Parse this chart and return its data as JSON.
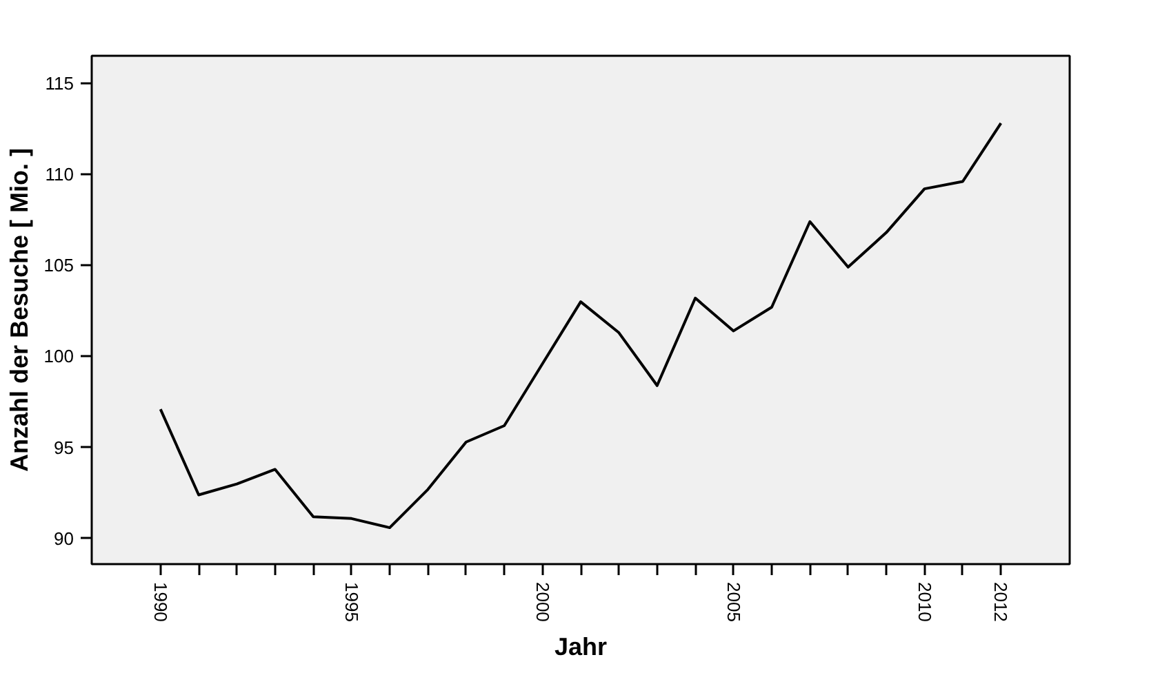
{
  "chart_data": {
    "type": "line",
    "xlabel": "Jahr",
    "ylabel": "Anzahl der Besuche [ Mio. ]",
    "x": [
      1990,
      1991,
      1992,
      1993,
      1994,
      1995,
      1996,
      1997,
      1998,
      1999,
      2000,
      2001,
      2002,
      2003,
      2004,
      2005,
      2006,
      2007,
      2008,
      2009,
      2010,
      2011,
      2012
    ],
    "series": [
      {
        "color": "#000000",
        "values": [
          97.1,
          92.4,
          93.0,
          93.8,
          91.2,
          91.1,
          90.6,
          92.7,
          95.3,
          96.2,
          99.6,
          103.0,
          101.3,
          98.4,
          103.2,
          101.4,
          102.7,
          107.4,
          104.9,
          106.8,
          109.2,
          109.6,
          112.8
        ]
      }
    ],
    "xlim": [
      1988.2,
      2013.8
    ],
    "ylim": [
      88.6,
      116.5
    ],
    "xticks": [
      1990,
      {
        "value": 1991,
        "label": null
      },
      {
        "value": 1992,
        "label": null
      },
      {
        "value": 1993,
        "label": null
      },
      {
        "value": 1994,
        "label": null
      },
      1995,
      {
        "value": 1996,
        "label": null
      },
      {
        "value": 1997,
        "label": null
      },
      {
        "value": 1998,
        "label": null
      },
      {
        "value": 1999,
        "label": null
      },
      2000,
      {
        "value": 2001,
        "label": null
      },
      {
        "value": 2002,
        "label": null
      },
      {
        "value": 2003,
        "label": null
      },
      {
        "value": 2004,
        "label": null
      },
      2005,
      {
        "value": 2006,
        "label": null
      },
      {
        "value": 2007,
        "label": null
      },
      {
        "value": 2008,
        "label": null
      },
      {
        "value": 2009,
        "label": null
      },
      2010,
      {
        "value": 2011,
        "label": null
      },
      2012
    ],
    "yticks": [
      90,
      95,
      100,
      105,
      110,
      115
    ],
    "grid": false,
    "marker": "none",
    "line_style": "solid"
  }
}
